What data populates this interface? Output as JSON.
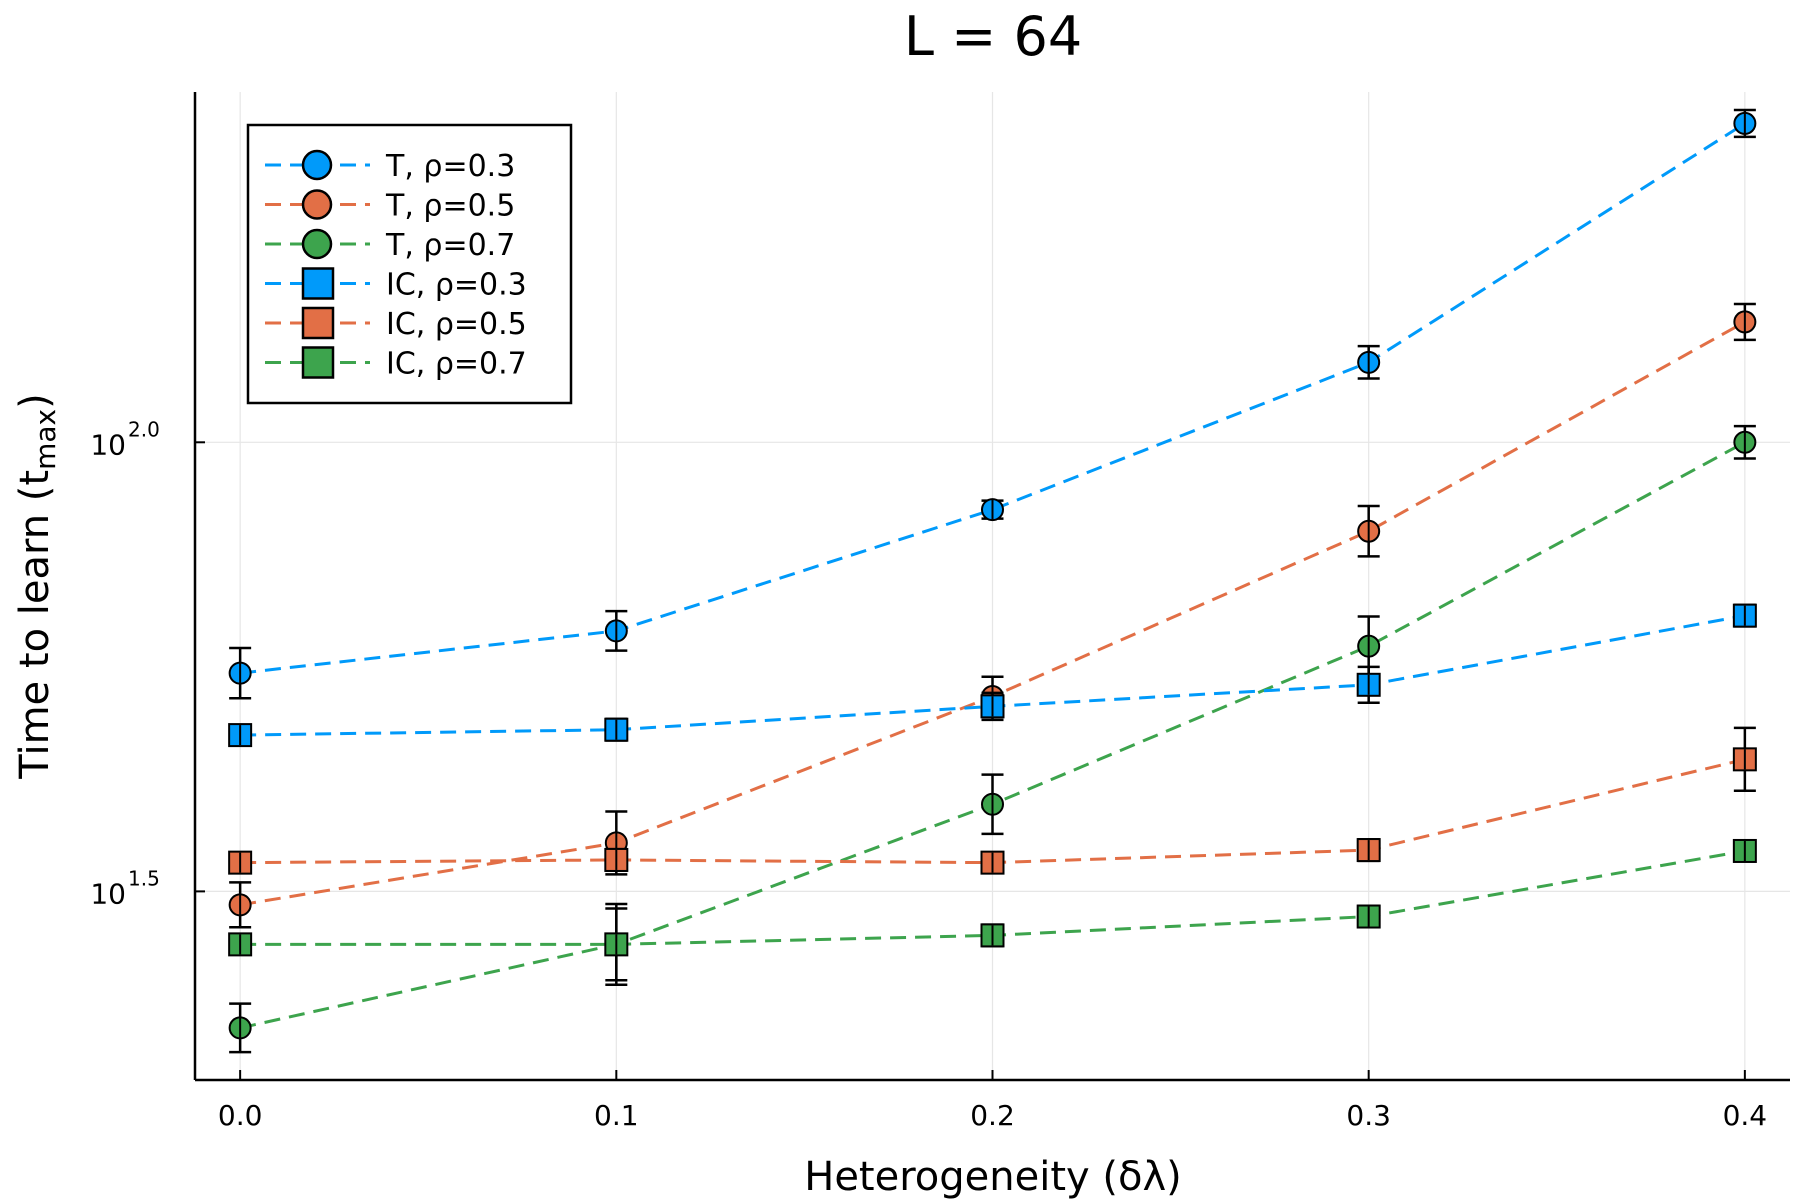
{
  "chart_data": {
    "type": "line",
    "title": "L = 64",
    "xlabel": "Heterogeneity (δλ)",
    "ylabel": {
      "main": "Time to learn (t",
      "sub": "max",
      "close": ")"
    },
    "y_scale": "log10",
    "xlim": [
      -0.012,
      0.412
    ],
    "ylim_log10": [
      1.29,
      2.39
    ],
    "x_ticks": [
      {
        "value": 0.0,
        "label": "0.0"
      },
      {
        "value": 0.1,
        "label": "0.1"
      },
      {
        "value": 0.2,
        "label": "0.2"
      },
      {
        "value": 0.3,
        "label": "0.3"
      },
      {
        "value": 0.4,
        "label": "0.4"
      }
    ],
    "y_ticks": [
      {
        "log10": 1.5,
        "base": "10",
        "exp": "1.5"
      },
      {
        "log10": 2.0,
        "base": "10",
        "exp": "2.0"
      }
    ],
    "grid": true,
    "legend_position": "top-left",
    "x": [
      0.0,
      0.1,
      0.2,
      0.3,
      0.4
    ],
    "series": [
      {
        "name": "T, ρ=0.3",
        "marker": "circle",
        "color": "#009AFA",
        "log10": [
          1.743,
          1.79,
          1.925,
          2.089,
          2.355
        ],
        "err": [
          0.028,
          0.022,
          0.01,
          0.018,
          0.015
        ]
      },
      {
        "name": "T, ρ=0.5",
        "marker": "circle",
        "color": "#E26F46",
        "log10": [
          1.485,
          1.554,
          1.717,
          1.901,
          2.134
        ],
        "err": [
          0.025,
          0.035,
          0.022,
          0.028,
          0.02
        ]
      },
      {
        "name": "T, ρ=0.7",
        "marker": "circle",
        "color": "#3DA44D",
        "log10": [
          1.348,
          1.441,
          1.597,
          1.773,
          2.0
        ],
        "err": [
          0.027,
          0.045,
          0.033,
          0.033,
          0.018
        ]
      },
      {
        "name": "IC, ρ=0.3",
        "marker": "square",
        "color": "#009AFA",
        "log10": [
          1.674,
          1.68,
          1.706,
          1.73,
          1.807
        ],
        "err": [
          0.01,
          0.012,
          0.015,
          0.02,
          0.012
        ]
      },
      {
        "name": "IC, ρ=0.5",
        "marker": "square",
        "color": "#E26F46",
        "log10": [
          1.532,
          1.535,
          1.532,
          1.546,
          1.647
        ],
        "err": [
          0.01,
          0.012,
          0.01,
          0.012,
          0.035
        ]
      },
      {
        "name": "IC, ρ=0.7",
        "marker": "square",
        "color": "#3DA44D",
        "log10": [
          1.441,
          1.441,
          1.451,
          1.472,
          1.545
        ],
        "err": [
          0.01,
          0.04,
          0.012,
          0.012,
          0.01
        ]
      }
    ]
  }
}
